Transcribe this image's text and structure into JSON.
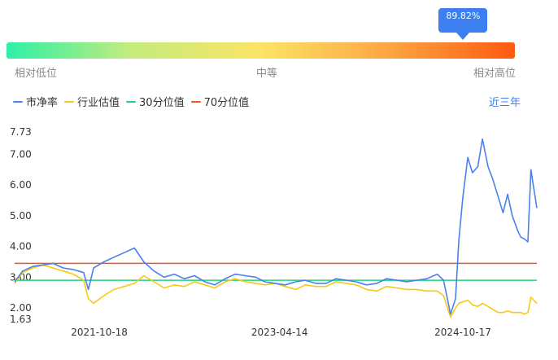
{
  "gauge": {
    "percentile_label": "89.82%",
    "percentile_value": 89.82,
    "low_label": "相对低位",
    "mid_label": "中等",
    "high_label": "相对高位",
    "gradient_colors": [
      "#2ef0a8",
      "#c6ec7c",
      "#fbe466",
      "#fca643",
      "#fd5a10"
    ]
  },
  "legend": {
    "items": [
      {
        "label": "市净率",
        "color": "#4a80ee"
      },
      {
        "label": "行业估值",
        "color": "#f7c815"
      },
      {
        "label": "30分位值",
        "color": "#1fd07f"
      },
      {
        "label": "70分位值",
        "color": "#f4531e"
      }
    ]
  },
  "range_label": "近三年",
  "chart_data": {
    "type": "line",
    "ylim": [
      1.63,
      7.73
    ],
    "y_ticks": [
      7.73,
      7.0,
      6.0,
      5.0,
      4.0,
      3.0,
      2.0,
      1.63
    ],
    "y_tick_labels": [
      "7.73",
      "7.00",
      "6.00",
      "5.00",
      "4.00",
      "3.00",
      "2.00",
      "1.63"
    ],
    "x_ticks": [
      "2021-10-18",
      "2023-04-14",
      "2024-10-17"
    ],
    "x_domain": [
      "2021-02-05",
      "2025-05-28"
    ],
    "reference_lines": [
      {
        "name": "30分位值",
        "value": 2.9,
        "color": "#1fd07f"
      },
      {
        "name": "70分位值",
        "value": 3.45,
        "color": "#f4531e"
      }
    ],
    "series": [
      {
        "name": "市净率",
        "color": "#4a80ee",
        "x": [
          "2021-02-05",
          "2021-03-01",
          "2021-04-01",
          "2021-05-01",
          "2021-06-01",
          "2021-07-01",
          "2021-08-01",
          "2021-09-01",
          "2021-09-15",
          "2021-10-01",
          "2021-11-01",
          "2021-12-01",
          "2022-01-01",
          "2022-02-01",
          "2022-03-01",
          "2022-04-01",
          "2022-05-01",
          "2022-06-01",
          "2022-07-01",
          "2022-08-01",
          "2022-09-01",
          "2022-10-01",
          "2022-11-01",
          "2022-12-01",
          "2023-01-01",
          "2023-02-01",
          "2023-03-01",
          "2023-04-01",
          "2023-05-01",
          "2023-06-01",
          "2023-07-01",
          "2023-08-01",
          "2023-09-01",
          "2023-10-01",
          "2023-11-01",
          "2023-12-01",
          "2024-01-01",
          "2024-02-01",
          "2024-03-01",
          "2024-04-01",
          "2024-05-01",
          "2024-06-01",
          "2024-07-01",
          "2024-08-01",
          "2024-08-20",
          "2024-09-10",
          "2024-09-25",
          "2024-10-05",
          "2024-10-17",
          "2024-11-01",
          "2024-11-15",
          "2024-12-01",
          "2024-12-15",
          "2025-01-01",
          "2025-01-15",
          "2025-02-01",
          "2025-02-15",
          "2025-03-01",
          "2025-03-15",
          "2025-04-01",
          "2025-04-10",
          "2025-04-20",
          "2025-05-01",
          "2025-05-10",
          "2025-05-28"
        ],
        "values": [
          2.85,
          3.2,
          3.35,
          3.4,
          3.45,
          3.3,
          3.25,
          3.15,
          2.6,
          3.3,
          3.5,
          3.65,
          3.8,
          3.95,
          3.5,
          3.2,
          3.0,
          3.1,
          2.95,
          3.05,
          2.85,
          2.75,
          2.95,
          3.1,
          3.05,
          3.0,
          2.85,
          2.8,
          2.75,
          2.85,
          2.9,
          2.8,
          2.8,
          2.95,
          2.9,
          2.85,
          2.75,
          2.8,
          2.95,
          2.9,
          2.85,
          2.9,
          2.95,
          3.1,
          2.9,
          1.8,
          2.3,
          4.2,
          5.6,
          6.9,
          6.4,
          6.6,
          7.5,
          6.6,
          6.2,
          5.6,
          5.1,
          5.7,
          5.0,
          4.5,
          4.3,
          4.25,
          4.15,
          6.5,
          5.25
        ]
      },
      {
        "name": "行业估值",
        "color": "#f7c815",
        "x": [
          "2021-02-05",
          "2021-03-01",
          "2021-04-01",
          "2021-05-01",
          "2021-06-01",
          "2021-07-01",
          "2021-08-01",
          "2021-09-01",
          "2021-09-15",
          "2021-10-01",
          "2021-11-01",
          "2021-12-01",
          "2022-01-01",
          "2022-02-01",
          "2022-03-01",
          "2022-04-01",
          "2022-05-01",
          "2022-06-01",
          "2022-07-01",
          "2022-08-01",
          "2022-09-01",
          "2022-10-01",
          "2022-11-01",
          "2022-12-01",
          "2023-01-01",
          "2023-02-01",
          "2023-03-01",
          "2023-04-01",
          "2023-05-01",
          "2023-06-01",
          "2023-07-01",
          "2023-08-01",
          "2023-09-01",
          "2023-10-01",
          "2023-11-01",
          "2023-12-01",
          "2024-01-01",
          "2024-02-01",
          "2024-03-01",
          "2024-04-01",
          "2024-05-01",
          "2024-06-01",
          "2024-07-01",
          "2024-08-01",
          "2024-08-20",
          "2024-09-10",
          "2024-09-25",
          "2024-10-05",
          "2024-10-17",
          "2024-11-01",
          "2024-11-15",
          "2024-12-01",
          "2024-12-15",
          "2025-01-01",
          "2025-01-15",
          "2025-02-01",
          "2025-02-15",
          "2025-03-01",
          "2025-03-15",
          "2025-04-01",
          "2025-04-10",
          "2025-04-20",
          "2025-05-01",
          "2025-05-10",
          "2025-05-28"
        ],
        "values": [
          2.8,
          3.15,
          3.3,
          3.4,
          3.3,
          3.2,
          3.1,
          2.9,
          2.3,
          2.15,
          2.4,
          2.6,
          2.7,
          2.8,
          3.05,
          2.85,
          2.65,
          2.75,
          2.7,
          2.85,
          2.75,
          2.65,
          2.85,
          2.95,
          2.85,
          2.8,
          2.75,
          2.8,
          2.7,
          2.6,
          2.75,
          2.7,
          2.7,
          2.85,
          2.8,
          2.75,
          2.6,
          2.55,
          2.7,
          2.65,
          2.6,
          2.6,
          2.55,
          2.55,
          2.4,
          1.7,
          2.0,
          2.15,
          2.2,
          2.25,
          2.1,
          2.05,
          2.15,
          2.05,
          1.95,
          1.85,
          1.85,
          1.9,
          1.85,
          1.85,
          1.85,
          1.8,
          1.85,
          2.35,
          2.15
        ]
      }
    ]
  }
}
